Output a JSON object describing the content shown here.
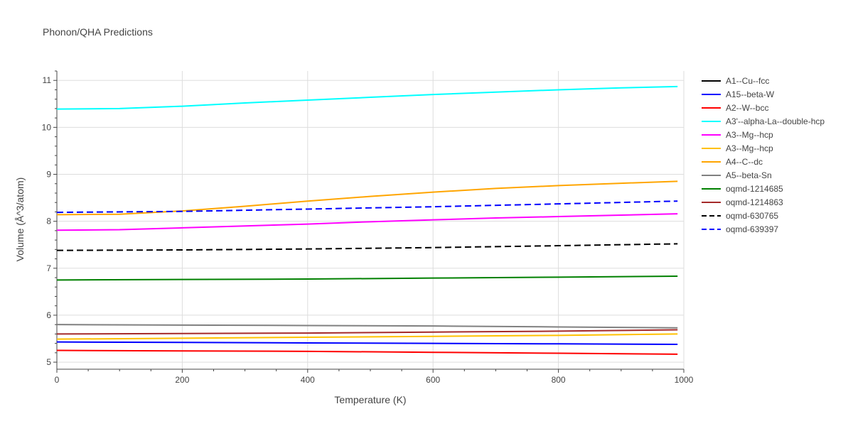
{
  "chart_data": {
    "type": "line",
    "title": "Phonon/QHA Predictions",
    "xlabel": "Temperature (K)",
    "ylabel": "Volume (Å^3/atom)",
    "xlim": [
      0,
      1000
    ],
    "ylim": [
      4.85,
      11.2
    ],
    "xticks": [
      0,
      200,
      400,
      600,
      800,
      1000
    ],
    "yticks": [
      5,
      6,
      7,
      8,
      9,
      10,
      11
    ],
    "grid": true,
    "legend_position": "right",
    "series": [
      {
        "name": "A1--Cu--fcc",
        "color": "#000000",
        "dash": "solid",
        "x": [
          0,
          1000
        ],
        "y": null
      },
      {
        "name": "A15--beta-W",
        "color": "#0000ff",
        "dash": "solid",
        "x": [
          0,
          200,
          400,
          600,
          800,
          990
        ],
        "y": [
          5.43,
          5.42,
          5.41,
          5.4,
          5.39,
          5.38
        ]
      },
      {
        "name": "A2--W--bcc",
        "color": "#ff0000",
        "dash": "solid",
        "x": [
          0,
          200,
          400,
          600,
          800,
          990
        ],
        "y": [
          5.25,
          5.24,
          5.23,
          5.21,
          5.19,
          5.17
        ]
      },
      {
        "name": "A3'--alpha-La--double-hcp",
        "color": "#00ffff",
        "dash": "solid",
        "x": [
          0,
          100,
          200,
          300,
          400,
          500,
          600,
          700,
          800,
          900,
          990
        ],
        "y": [
          10.39,
          10.4,
          10.45,
          10.52,
          10.58,
          10.64,
          10.7,
          10.75,
          10.8,
          10.84,
          10.87
        ]
      },
      {
        "name": "A3--Mg--hcp",
        "color": "#ff00ff",
        "dash": "solid",
        "x": [
          0,
          100,
          200,
          300,
          400,
          500,
          600,
          700,
          800,
          900,
          990
        ],
        "y": [
          7.81,
          7.82,
          7.86,
          7.9,
          7.94,
          7.99,
          8.03,
          8.07,
          8.1,
          8.13,
          8.16
        ]
      },
      {
        "name": "A3--Mg--hcp",
        "color": "#ffc000",
        "dash": "solid",
        "x": [
          0,
          200,
          400,
          600,
          800,
          990
        ],
        "y": [
          5.49,
          5.51,
          5.53,
          5.55,
          5.57,
          5.6
        ]
      },
      {
        "name": "A4--C--dc",
        "color": "#ffa500",
        "dash": "solid",
        "x": [
          0,
          100,
          200,
          300,
          400,
          500,
          600,
          700,
          800,
          900,
          990
        ],
        "y": [
          8.14,
          8.15,
          8.22,
          8.32,
          8.43,
          8.53,
          8.62,
          8.7,
          8.76,
          8.81,
          8.85
        ]
      },
      {
        "name": "A5--beta-Sn",
        "color": "#808080",
        "dash": "solid",
        "x": [
          0,
          200,
          400,
          600,
          800,
          990
        ],
        "y": [
          5.8,
          5.79,
          5.78,
          5.77,
          5.75,
          5.73
        ]
      },
      {
        "name": "oqmd-1214685",
        "color": "#008000",
        "dash": "solid",
        "x": [
          0,
          200,
          400,
          600,
          800,
          990
        ],
        "y": [
          6.75,
          6.76,
          6.77,
          6.79,
          6.81,
          6.83
        ]
      },
      {
        "name": "oqmd-1214863",
        "color": "#a52a2a",
        "dash": "solid",
        "x": [
          0,
          200,
          400,
          600,
          800,
          990
        ],
        "y": [
          5.6,
          5.61,
          5.62,
          5.64,
          5.66,
          5.69
        ]
      },
      {
        "name": "oqmd-630765",
        "color": "#000000",
        "dash": "dash",
        "x": [
          0,
          200,
          400,
          600,
          800,
          990
        ],
        "y": [
          7.38,
          7.39,
          7.41,
          7.44,
          7.48,
          7.52
        ]
      },
      {
        "name": "oqmd-639397",
        "color": "#0000ff",
        "dash": "dash",
        "x": [
          0,
          200,
          400,
          600,
          800,
          990
        ],
        "y": [
          8.19,
          8.21,
          8.26,
          8.31,
          8.37,
          8.43
        ]
      }
    ]
  }
}
